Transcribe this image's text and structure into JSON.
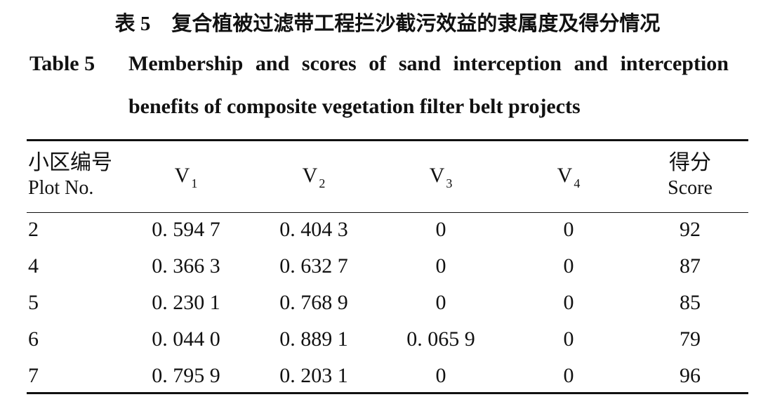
{
  "caption": {
    "zh_label": "表 5",
    "zh_title": "复合植被过滤带工程拦沙截污效益的隶属度及得分情况",
    "en_label": "Table 5",
    "en_title": "Membership and scores of sand interception and interception benefits of composite vegetation filter belt projects"
  },
  "table": {
    "header": [
      {
        "zh": "小区编号",
        "en": "Plot No."
      },
      {
        "main": "V",
        "sub": "1"
      },
      {
        "main": "V",
        "sub": "2"
      },
      {
        "main": "V",
        "sub": "3"
      },
      {
        "main": "V",
        "sub": "4"
      },
      {
        "zh": "得分",
        "en": "Score"
      }
    ],
    "rows": [
      [
        "2",
        "0. 594 7",
        "0. 404 3",
        "0",
        "0",
        "92"
      ],
      [
        "4",
        "0. 366 3",
        "0. 632 7",
        "0",
        "0",
        "87"
      ],
      [
        "5",
        "0. 230 1",
        "0. 768 9",
        "0",
        "0",
        "85"
      ],
      [
        "6",
        "0. 044 0",
        "0. 889 1",
        "0. 065 9",
        "0",
        "79"
      ],
      [
        "7",
        "0. 795 9",
        "0. 203 1",
        "0",
        "0",
        "96"
      ]
    ]
  }
}
